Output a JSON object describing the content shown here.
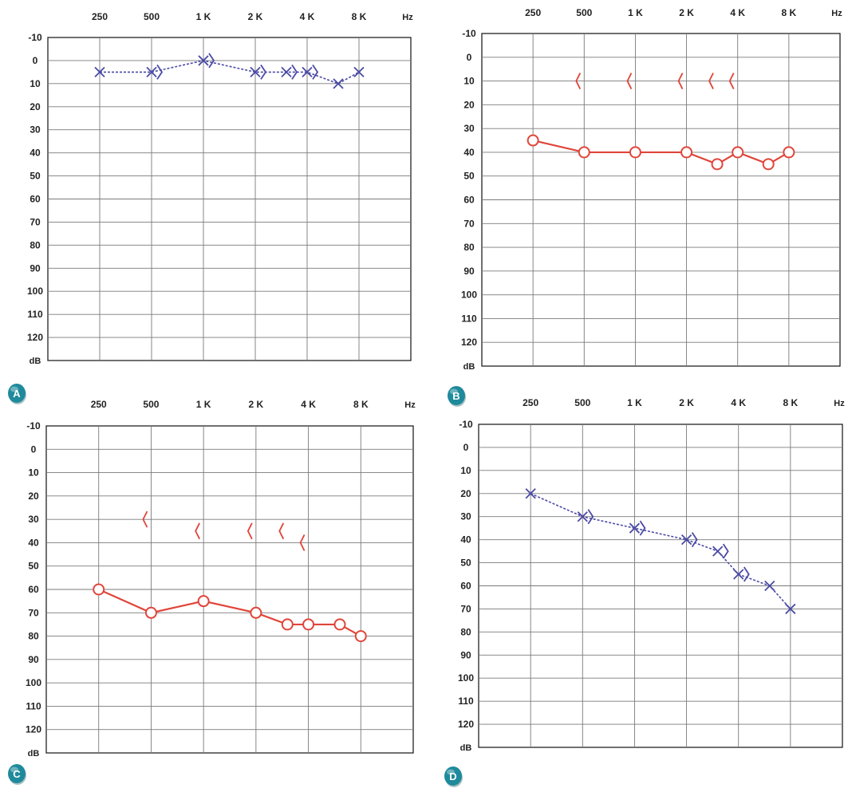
{
  "x_ticks": [
    "250",
    "500",
    "1 K",
    "2 K",
    "4 K",
    "8 K"
  ],
  "x_unit": "Hz",
  "y_ticks": [
    "-10",
    "0",
    "10",
    "20",
    "30",
    "40",
    "50",
    "60",
    "70",
    "80",
    "90",
    "100",
    "110",
    "120"
  ],
  "y_unit": "dB",
  "colors": {
    "left_ear": "#4a4aa6",
    "right_ear": "#e0453a",
    "grid": "#7a7a7a",
    "badge": "#1f8a9c"
  },
  "chart_data": [
    {
      "type": "line",
      "panel_label": "A",
      "ylim": [
        -10,
        125
      ],
      "series": [
        {
          "symbol": "x",
          "style": "dashed",
          "color": "#4a4aa6",
          "x": [
            "250",
            "500",
            "1 K",
            "2 K",
            "3 K",
            "4 K",
            "6 K",
            "8 K"
          ],
          "values": [
            5,
            5,
            0,
            5,
            5,
            5,
            10,
            5
          ]
        },
        {
          "symbol": ">",
          "style": "none",
          "color": "#4a4aa6",
          "x": [
            "500",
            "1 K",
            "2 K",
            "3 K",
            "4 K"
          ],
          "values": [
            5,
            0,
            5,
            5,
            5
          ]
        }
      ]
    },
    {
      "type": "line",
      "panel_label": "B",
      "ylim": [
        -10,
        125
      ],
      "series": [
        {
          "symbol": "o",
          "style": "solid",
          "color": "#e0453a",
          "x": [
            "250",
            "500",
            "1 K",
            "2 K",
            "3 K",
            "4 K",
            "6 K",
            "8 K"
          ],
          "values": [
            35,
            40,
            40,
            40,
            45,
            40,
            45,
            40
          ]
        },
        {
          "symbol": "<",
          "style": "none",
          "color": "#e0453a",
          "x": [
            "500",
            "1 K",
            "2 K",
            "3 K",
            "4 K"
          ],
          "values": [
            10,
            10,
            10,
            10,
            10
          ]
        }
      ]
    },
    {
      "type": "line",
      "panel_label": "C",
      "ylim": [
        -10,
        125
      ],
      "series": [
        {
          "symbol": "o",
          "style": "solid",
          "color": "#e0453a",
          "x": [
            "250",
            "500",
            "1 K",
            "2 K",
            "3 K",
            "4 K",
            "6 K",
            "8 K"
          ],
          "values": [
            60,
            70,
            65,
            70,
            75,
            75,
            75,
            80
          ]
        },
        {
          "symbol": "<",
          "style": "none",
          "color": "#e0453a",
          "x": [
            "500",
            "1 K",
            "2 K",
            "3 K",
            "4 K"
          ],
          "values": [
            30,
            35,
            35,
            35,
            40
          ]
        }
      ]
    },
    {
      "type": "line",
      "panel_label": "D",
      "ylim": [
        -10,
        125
      ],
      "series": [
        {
          "symbol": "x",
          "style": "dashed",
          "color": "#4a4aa6",
          "x": [
            "250",
            "500",
            "1 K",
            "2 K",
            "3 K",
            "4 K",
            "6 K",
            "8 K"
          ],
          "values": [
            20,
            30,
            35,
            40,
            45,
            55,
            60,
            70
          ]
        },
        {
          "symbol": ">",
          "style": "none",
          "color": "#4a4aa6",
          "x": [
            "500",
            "1 K",
            "2 K",
            "3 K",
            "4 K"
          ],
          "values": [
            30,
            35,
            40,
            45,
            55
          ]
        }
      ]
    }
  ]
}
